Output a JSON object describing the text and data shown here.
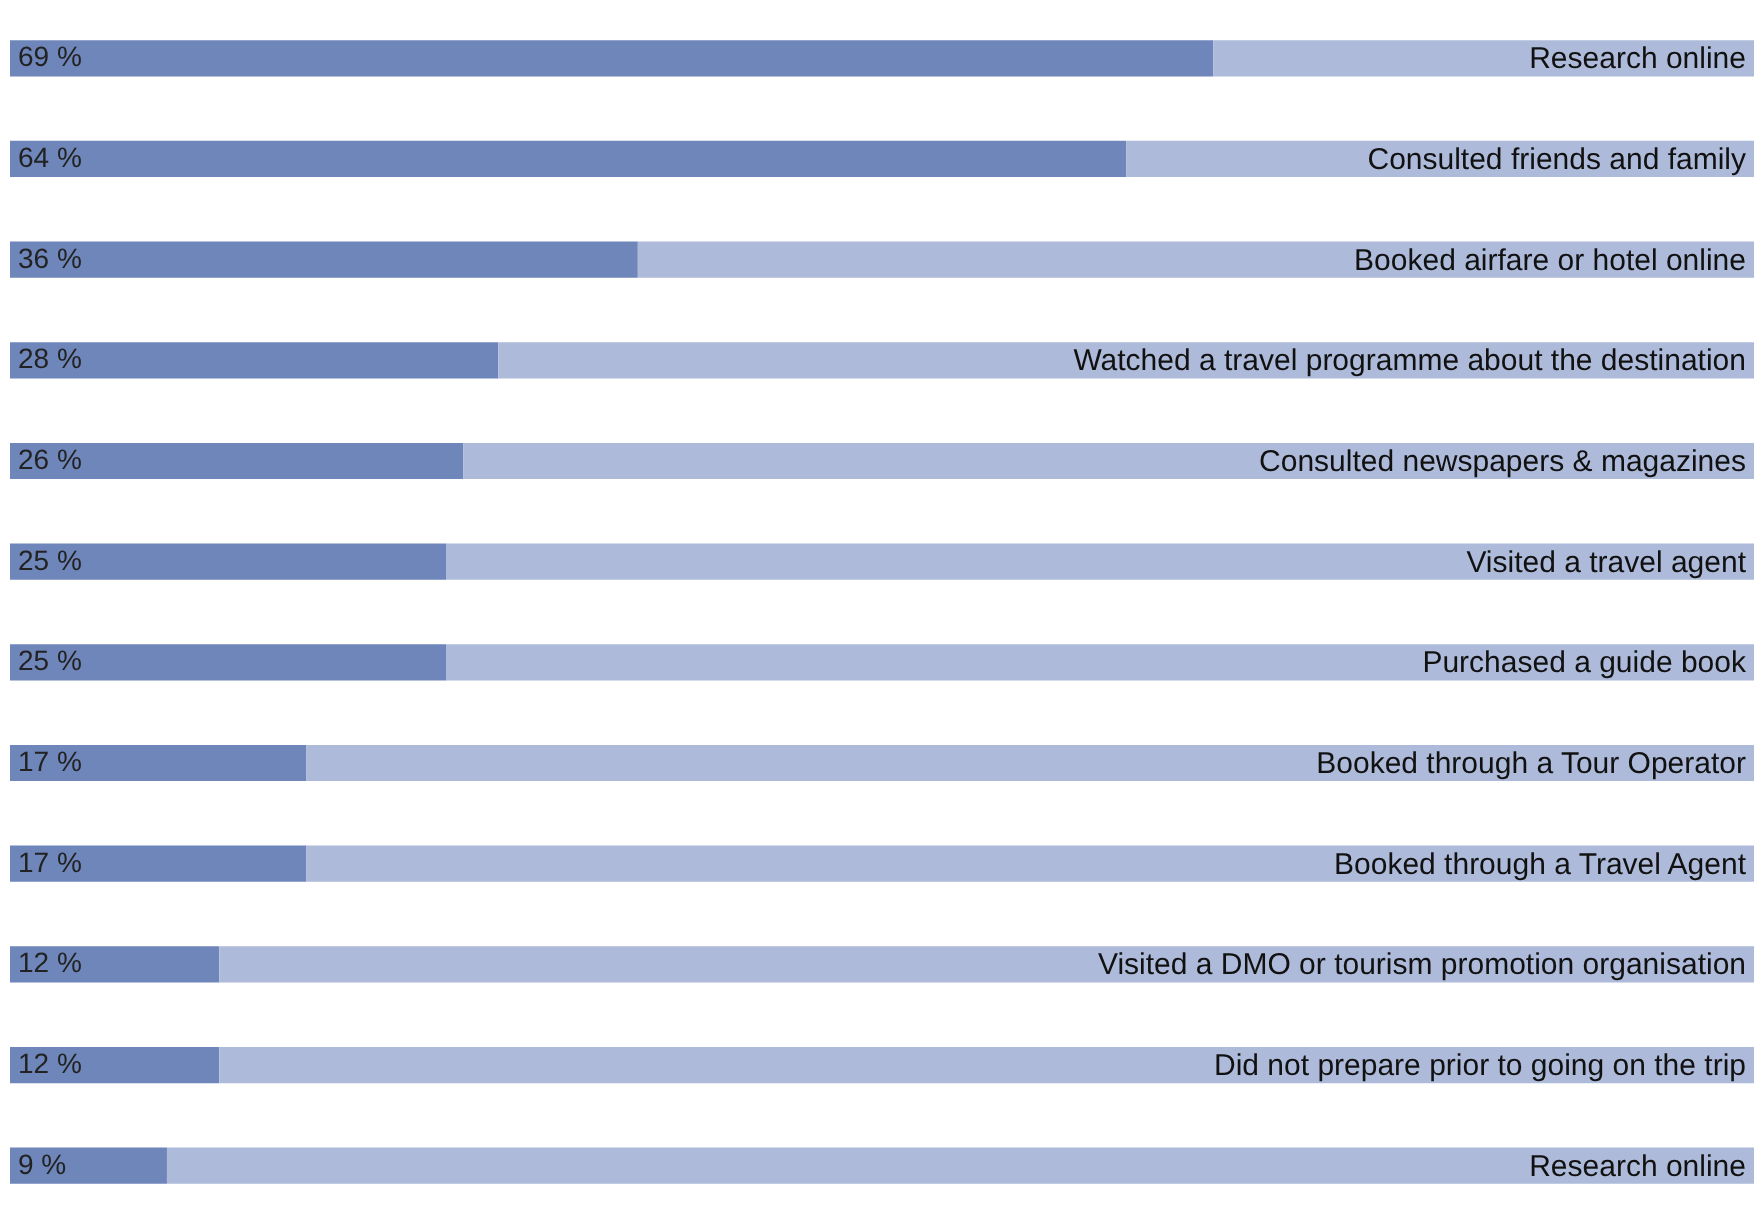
{
  "chart_data": {
    "type": "bar",
    "orientation": "horizontal",
    "stacked": true,
    "xlim": [
      0,
      100
    ],
    "tick_labels": false,
    "categories": [
      "Research online",
      "Consulted friends and family",
      "Booked airfare or hotel online",
      "Watched a travel programme about the destination",
      "Consulted newspapers & magazines",
      "Visited a travel agent",
      "Purchased a guide book",
      "Booked through a Tour Operator",
      "Booked through a Travel Agent",
      "Visited a DMO or tourism promotion organisation",
      "Did not prepare prior to going on the trip",
      "Research online"
    ],
    "series": [
      {
        "color": "#6f86bb",
        "values": [
          69,
          64,
          36,
          28,
          26,
          25,
          25,
          17,
          17,
          12,
          12,
          9
        ],
        "value_labels": [
          "69 %",
          "64 %",
          "36 %",
          "28 %",
          "26 %",
          "25 %",
          "25 %",
          "17 %",
          "17 %",
          "12 %",
          "12 %",
          "9 %"
        ]
      },
      {
        "color": "#adbad9",
        "values": [
          31,
          36,
          64,
          72,
          74,
          75,
          75,
          83,
          83,
          88,
          88,
          91
        ]
      }
    ]
  }
}
